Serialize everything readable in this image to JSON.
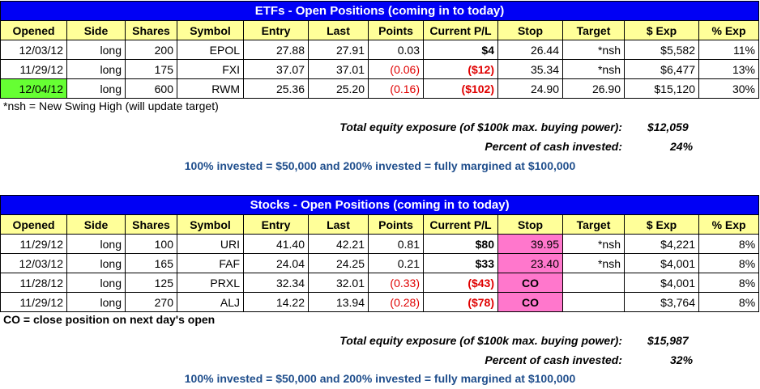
{
  "etf": {
    "title": "ETFs - Open Positions (coming in to today)",
    "headers": [
      "Opened",
      "Side",
      "Shares",
      "Symbol",
      "Entry",
      "Last",
      "Points",
      "Current P/L",
      "Stop",
      "Target",
      "$ Exp",
      "% Exp"
    ],
    "rows": [
      [
        "12/03/12",
        "long",
        "200",
        "EPOL",
        "27.88",
        "27.91",
        "0.03",
        "$4",
        "26.44",
        "*nsh",
        "$5,582",
        "11%"
      ],
      [
        "11/29/12",
        "long",
        "175",
        "FXI",
        "37.07",
        "37.01",
        "(0.06)",
        "($12)",
        "35.34",
        "*nsh",
        "$6,477",
        "13%"
      ],
      [
        "12/04/12",
        "long",
        "600",
        "RWM",
        "25.36",
        "25.20",
        "(0.16)",
        "($102)",
        "24.90",
        "26.90",
        "$15,120",
        "30%"
      ]
    ],
    "note": "*nsh = New Swing High (will update target)",
    "exposure_label": "Total equity exposure (of $100k max. buying power):",
    "exposure_value": "$12,059",
    "cash_label": "Percent of cash invested:",
    "cash_value": "24%",
    "invested_text": "100% invested = $50,000 and 200% invested = fully margined at $100,000"
  },
  "stocks": {
    "title": "Stocks - Open Positions (coming in to today)",
    "headers": [
      "Opened",
      "Side",
      "Shares",
      "Symbol",
      "Entry",
      "Last",
      "Points",
      "Current P/L",
      "Stop",
      "Target",
      "$ Exp",
      "% Exp"
    ],
    "rows": [
      [
        "11/29/12",
        "long",
        "100",
        "URI",
        "41.40",
        "42.21",
        "0.81",
        "$80",
        "39.95",
        "*nsh",
        "$4,221",
        "8%"
      ],
      [
        "12/03/12",
        "long",
        "165",
        "FAF",
        "24.04",
        "24.25",
        "0.21",
        "$33",
        "23.40",
        "*nsh",
        "$4,001",
        "8%"
      ],
      [
        "11/28/12",
        "long",
        "125",
        "PRXL",
        "32.34",
        "32.01",
        "(0.33)",
        "($43)",
        "CO",
        "",
        "$4,001",
        "8%"
      ],
      [
        "11/29/12",
        "long",
        "270",
        "ALJ",
        "14.22",
        "13.94",
        "(0.28)",
        "($78)",
        "CO",
        "",
        "$3,764",
        "8%"
      ]
    ],
    "note": "CO = close position on next day's open",
    "exposure_label": "Total equity exposure (of $100k max. buying power):",
    "exposure_value": "$15,987",
    "cash_label": "Percent of cash invested:",
    "cash_value": "32%",
    "invested_text": "100% invested = $50,000 and 200% invested = fully margined at $100,000"
  },
  "colors": {
    "title_bg": "#0000f5",
    "header_bg": "#ffff99",
    "highlight_green": "#66ff33",
    "highlight_pink": "#ff77cc",
    "negative_text": "#e00000",
    "invested_text": "#1f4e8c"
  }
}
